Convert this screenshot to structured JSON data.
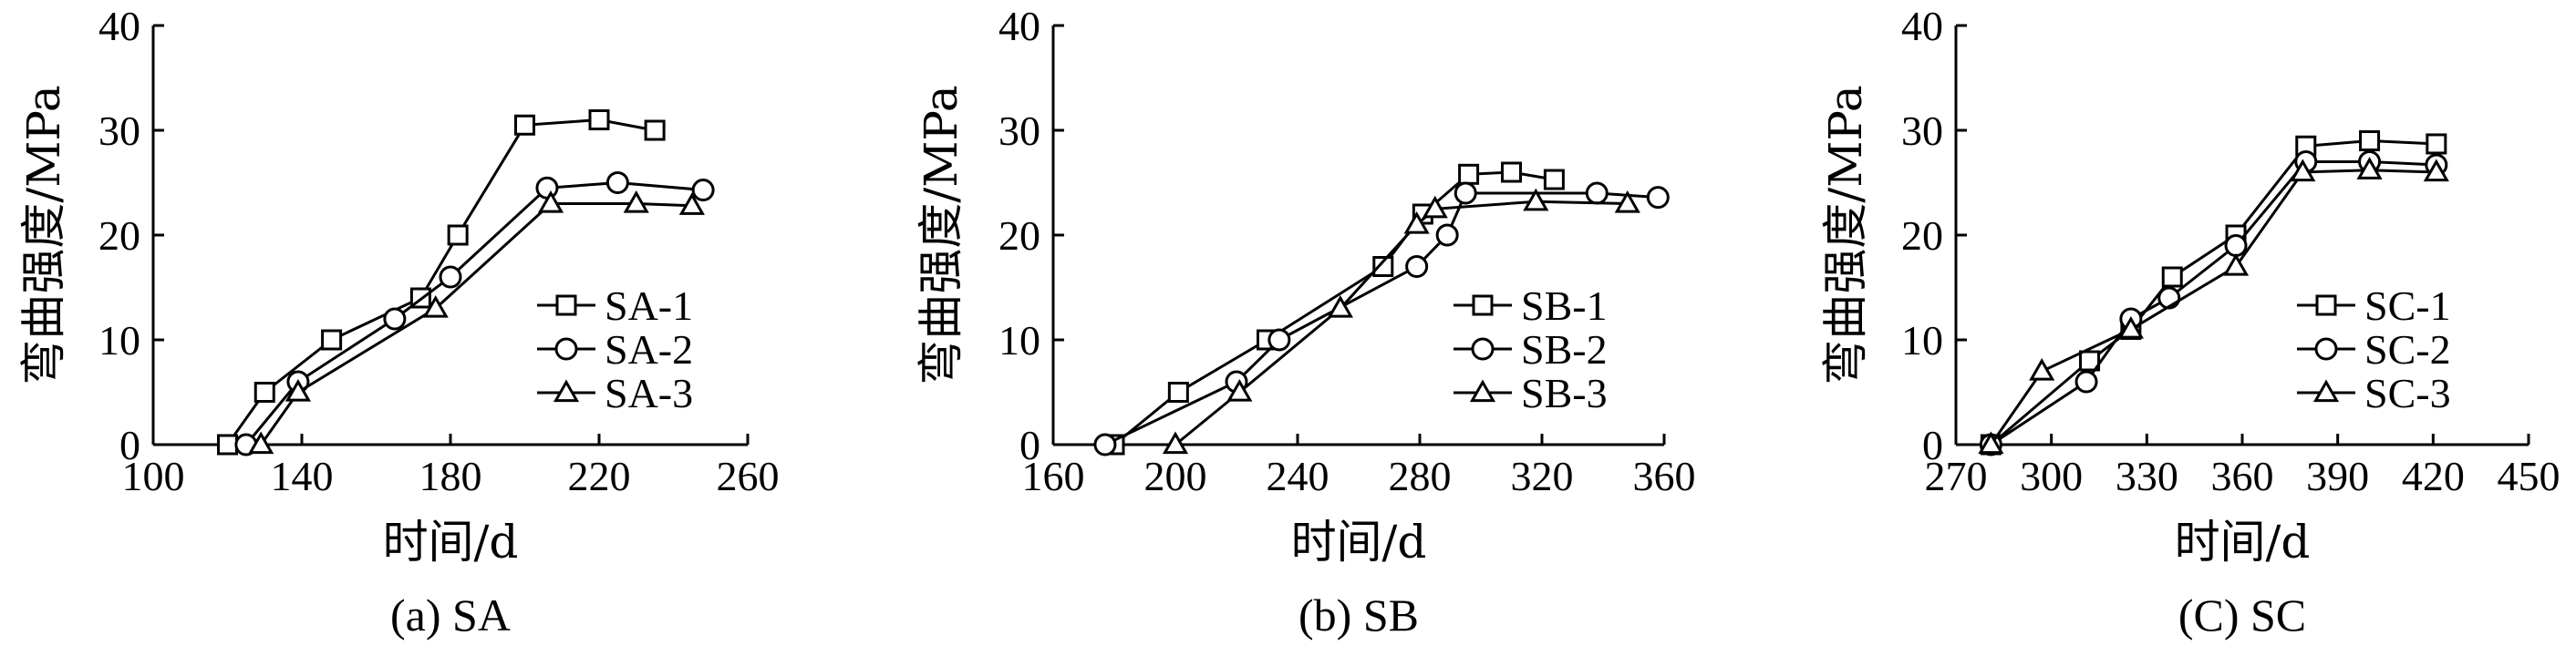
{
  "chart_data": [
    {
      "type": "line",
      "caption": "(a) SA",
      "xlabel": "时间/d",
      "ylabel": "弯曲强度/MPa",
      "xlim": [
        100,
        260
      ],
      "ylim": [
        0,
        40
      ],
      "xticks": [
        100,
        140,
        180,
        220,
        260
      ],
      "yticks": [
        0,
        10,
        20,
        30,
        40
      ],
      "legend_position": "center-right",
      "series": [
        {
          "name": "SA-1",
          "marker": "square",
          "points": [
            [
              120,
              0
            ],
            [
              130,
              5
            ],
            [
              148,
              10
            ],
            [
              172,
              14
            ],
            [
              182,
              20
            ],
            [
              200,
              30.5
            ],
            [
              220,
              31
            ],
            [
              235,
              30
            ]
          ]
        },
        {
          "name": "SA-2",
          "marker": "circle",
          "points": [
            [
              125,
              0
            ],
            [
              139,
              6
            ],
            [
              165,
              12
            ],
            [
              180,
              16
            ],
            [
              206,
              24.5
            ],
            [
              225,
              25
            ],
            [
              248,
              24.3
            ]
          ]
        },
        {
          "name": "SA-3",
          "marker": "triangle",
          "points": [
            [
              129,
              0
            ],
            [
              139,
              5
            ],
            [
              176,
              13
            ],
            [
              207,
              23
            ],
            [
              230,
              23
            ],
            [
              245,
              22.8
            ]
          ]
        }
      ]
    },
    {
      "type": "line",
      "caption": "(b) SB",
      "xlabel": "时间/d",
      "ylabel": "弯曲强度/MPa",
      "xlim": [
        160,
        360
      ],
      "ylim": [
        0,
        40
      ],
      "xticks": [
        160,
        200,
        240,
        280,
        320,
        360
      ],
      "yticks": [
        0,
        10,
        20,
        30,
        40
      ],
      "legend_position": "center-right",
      "series": [
        {
          "name": "SB-1",
          "marker": "square",
          "points": [
            [
              180,
              0
            ],
            [
              201,
              5
            ],
            [
              230,
              10
            ],
            [
              268,
              17
            ],
            [
              281,
              22
            ],
            [
              296,
              25.8
            ],
            [
              310,
              26
            ],
            [
              324,
              25.3
            ]
          ]
        },
        {
          "name": "SB-2",
          "marker": "circle",
          "points": [
            [
              177,
              0
            ],
            [
              220,
              6
            ],
            [
              234,
              10
            ],
            [
              279,
              17
            ],
            [
              289,
              20
            ],
            [
              295,
              24
            ],
            [
              338,
              24
            ],
            [
              358,
              23.6
            ]
          ]
        },
        {
          "name": "SB-3",
          "marker": "triangle",
          "points": [
            [
              200,
              0
            ],
            [
              221,
              5
            ],
            [
              254,
              13
            ],
            [
              279,
              21
            ],
            [
              285,
              22.5
            ],
            [
              318,
              23.2
            ],
            [
              348,
              23
            ]
          ]
        }
      ]
    },
    {
      "type": "line",
      "caption": "(C) SC",
      "xlabel": "时间/d",
      "ylabel": "弯曲强度/MPa",
      "xlim": [
        270,
        450
      ],
      "ylim": [
        0,
        40
      ],
      "xticks": [
        270,
        300,
        330,
        360,
        390,
        420,
        450
      ],
      "yticks": [
        0,
        10,
        20,
        30,
        40
      ],
      "legend_position": "center-right",
      "series": [
        {
          "name": "SC-1",
          "marker": "square",
          "points": [
            [
              281,
              0
            ],
            [
              312,
              8
            ],
            [
              325,
              11
            ],
            [
              338,
              16
            ],
            [
              358,
              20
            ],
            [
              380,
              28.5
            ],
            [
              400,
              29
            ],
            [
              421,
              28.7
            ]
          ]
        },
        {
          "name": "SC-2",
          "marker": "circle",
          "points": [
            [
              281,
              0
            ],
            [
              311,
              6
            ],
            [
              325,
              12
            ],
            [
              337,
              14
            ],
            [
              358,
              19
            ],
            [
              380,
              27
            ],
            [
              400,
              27
            ],
            [
              421,
              26.7
            ]
          ]
        },
        {
          "name": "SC-3",
          "marker": "triangle",
          "points": [
            [
              281,
              0
            ],
            [
              297,
              7
            ],
            [
              325,
              11
            ],
            [
              358,
              17
            ],
            [
              379,
              26
            ],
            [
              400,
              26.2
            ],
            [
              421,
              26
            ]
          ]
        }
      ]
    }
  ]
}
